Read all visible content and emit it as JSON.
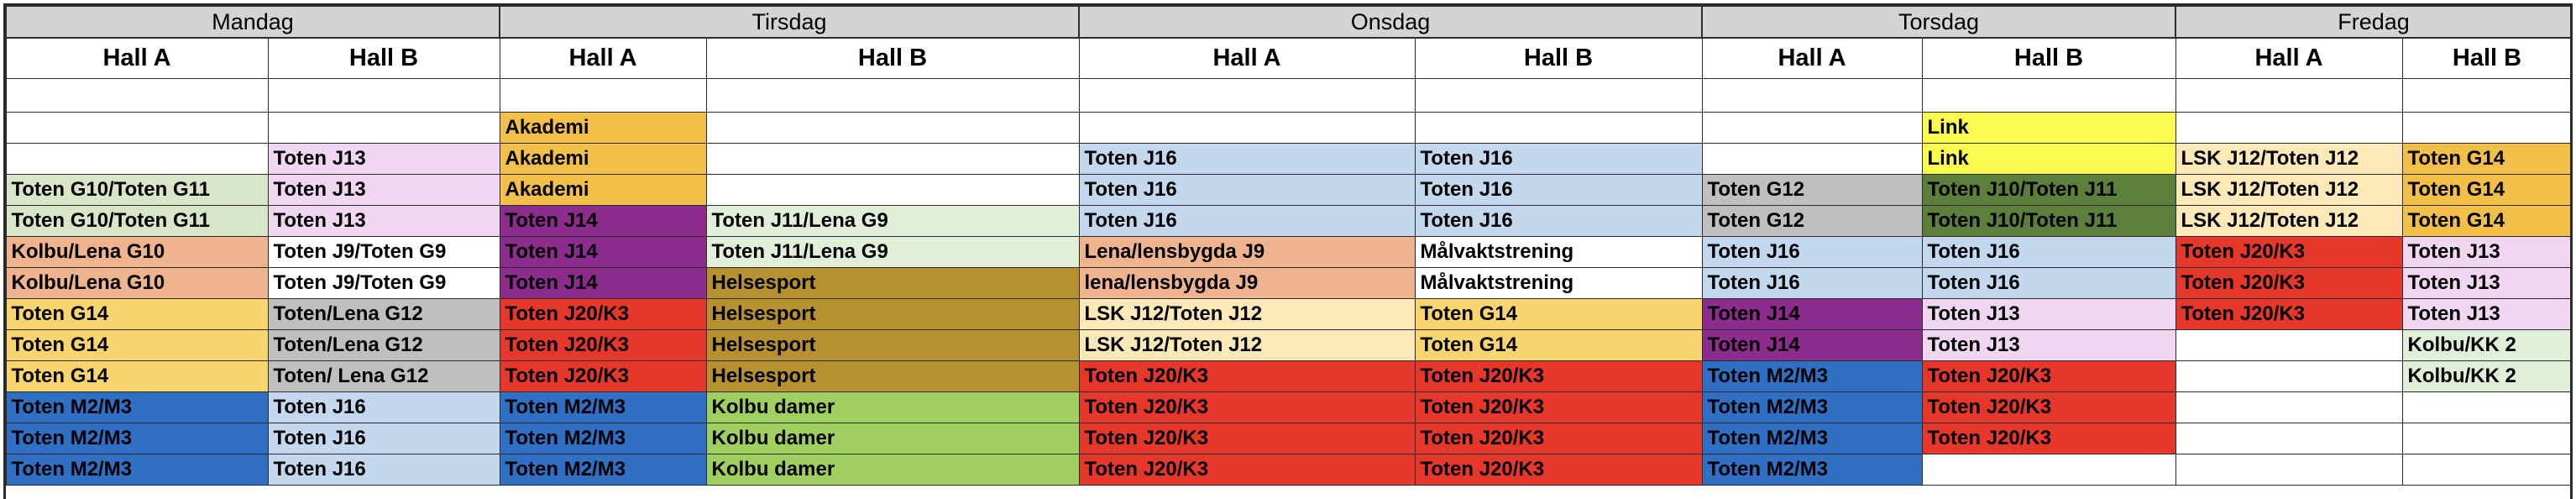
{
  "days": [
    "Mandag",
    "Tirsdag",
    "Onsdag",
    "Torsdag",
    "Fredag"
  ],
  "halls": [
    "Hall A",
    "Hall B",
    "Hall A",
    "Hall B",
    "Hall A",
    "Hall B",
    "Hall A",
    "Hall B",
    "Hall A",
    "Hall B"
  ],
  "colors": {
    "w": "#ffffff",
    "lg": "#d8e6c7",
    "pk": "#f0d6f1",
    "sa": "#efb38e",
    "yo": "#f9d56f",
    "bl": "#2f6fc4",
    "lb": "#c3d7ee",
    "or": "#f2bf48",
    "pu": "#8c2c8c",
    "re": "#e5382a",
    "go": "#b7902f",
    "gr": "#9fcf5e",
    "gy": "#bfbfbf",
    "pg": "#e2efd8",
    "cr": "#fde9b8",
    "ye": "#fafa4f",
    "dg": "#5d7f3c"
  },
  "rows": [
    [
      [
        "",
        "w"
      ],
      [
        "",
        "w"
      ],
      [
        "",
        "w"
      ],
      [
        "",
        "w"
      ],
      [
        "",
        "w"
      ],
      [
        "",
        "w"
      ],
      [
        "",
        "w"
      ],
      [
        "",
        "w"
      ],
      [
        "",
        "w"
      ],
      [
        "",
        "w"
      ]
    ],
    [
      [
        "",
        "w"
      ],
      [
        "",
        "w"
      ],
      [
        "Akademi",
        "or"
      ],
      [
        "",
        "w"
      ],
      [
        "",
        "w"
      ],
      [
        "",
        "w"
      ],
      [
        "",
        "w"
      ],
      [
        "Link",
        "ye"
      ],
      [
        "",
        "w"
      ],
      [
        "",
        "w"
      ]
    ],
    [
      [
        "",
        "w"
      ],
      [
        "Toten J13",
        "pk"
      ],
      [
        "Akademi",
        "or"
      ],
      [
        "",
        "w"
      ],
      [
        "Toten J16",
        "lb"
      ],
      [
        "Toten J16",
        "lb"
      ],
      [
        "",
        "w"
      ],
      [
        "Link",
        "ye"
      ],
      [
        "LSK J12/Toten J12",
        "cr"
      ],
      [
        "Toten G14",
        "or"
      ]
    ],
    [
      [
        "Toten G10/Toten G11",
        "lg"
      ],
      [
        "Toten J13",
        "pk"
      ],
      [
        "Akademi",
        "or"
      ],
      [
        "",
        "w"
      ],
      [
        "Toten J16",
        "lb"
      ],
      [
        "Toten J16",
        "lb"
      ],
      [
        "Toten G12",
        "gy"
      ],
      [
        "Toten J10/Toten J11",
        "dg"
      ],
      [
        "LSK J12/Toten J12",
        "cr"
      ],
      [
        "Toten G14",
        "or"
      ]
    ],
    [
      [
        "Toten G10/Toten G11",
        "lg"
      ],
      [
        "Toten J13",
        "pk"
      ],
      [
        "Toten J14",
        "pu"
      ],
      [
        "Toten J11/Lena G9",
        "pg"
      ],
      [
        "Toten J16",
        "lb"
      ],
      [
        "Toten J16",
        "lb"
      ],
      [
        "Toten G12",
        "gy"
      ],
      [
        "Toten J10/Toten J11",
        "dg"
      ],
      [
        "LSK J12/Toten J12",
        "cr"
      ],
      [
        "Toten G14",
        "or"
      ]
    ],
    [
      [
        "Kolbu/Lena G10",
        "sa"
      ],
      [
        "Toten J9/Toten G9",
        "w"
      ],
      [
        "Toten J14",
        "pu"
      ],
      [
        "Toten J11/Lena G9",
        "pg"
      ],
      [
        "Lena/lensbygda J9",
        "sa"
      ],
      [
        "Målvaktstrening",
        "w"
      ],
      [
        "Toten J16",
        "lb"
      ],
      [
        "Toten J16",
        "lb"
      ],
      [
        "Toten J20/K3",
        "re"
      ],
      [
        "Toten J13",
        "pk"
      ]
    ],
    [
      [
        "Kolbu/Lena G10",
        "sa"
      ],
      [
        "Toten J9/Toten G9",
        "w"
      ],
      [
        "Toten J14",
        "pu"
      ],
      [
        "Helsesport",
        "go"
      ],
      [
        "lena/lensbygda J9",
        "sa"
      ],
      [
        "Målvaktstrening",
        "w"
      ],
      [
        "Toten J16",
        "lb"
      ],
      [
        "Toten J16",
        "lb"
      ],
      [
        "Toten J20/K3",
        "re"
      ],
      [
        "Toten J13",
        "pk"
      ]
    ],
    [
      [
        "Toten G14",
        "yo"
      ],
      [
        "Toten/Lena G12",
        "gy"
      ],
      [
        "Toten J20/K3",
        "re"
      ],
      [
        "Helsesport",
        "go"
      ],
      [
        "LSK J12/Toten J12",
        "cr"
      ],
      [
        "Toten G14",
        "yo"
      ],
      [
        "Toten J14",
        "pu"
      ],
      [
        "Toten J13",
        "pk"
      ],
      [
        "Toten J20/K3",
        "re"
      ],
      [
        "Toten J13",
        "pk"
      ]
    ],
    [
      [
        "Toten G14",
        "yo"
      ],
      [
        "Toten/Lena G12",
        "gy"
      ],
      [
        "Toten J20/K3",
        "re"
      ],
      [
        "Helsesport",
        "go"
      ],
      [
        "LSK J12/Toten J12",
        "cr"
      ],
      [
        "Toten G14",
        "yo"
      ],
      [
        "Toten J14",
        "pu"
      ],
      [
        "Toten J13",
        "pk"
      ],
      [
        "",
        "w"
      ],
      [
        "Kolbu/KK 2",
        "pg"
      ]
    ],
    [
      [
        "Toten G14",
        "yo"
      ],
      [
        "Toten/ Lena G12",
        "gy"
      ],
      [
        "Toten J20/K3",
        "re"
      ],
      [
        "Helsesport",
        "go"
      ],
      [
        "Toten J20/K3",
        "re"
      ],
      [
        "Toten J20/K3",
        "re"
      ],
      [
        "Toten M2/M3",
        "bl"
      ],
      [
        "Toten J20/K3",
        "re"
      ],
      [
        "",
        "w"
      ],
      [
        "Kolbu/KK 2",
        "pg"
      ]
    ],
    [
      [
        "Toten M2/M3",
        "bl"
      ],
      [
        "Toten J16",
        "lb"
      ],
      [
        "Toten M2/M3",
        "bl"
      ],
      [
        "Kolbu damer",
        "gr"
      ],
      [
        "Toten J20/K3",
        "re"
      ],
      [
        "Toten J20/K3",
        "re"
      ],
      [
        "Toten M2/M3",
        "bl"
      ],
      [
        "Toten J20/K3",
        "re"
      ],
      [
        "",
        "w"
      ],
      [
        "",
        "w"
      ]
    ],
    [
      [
        "Toten M2/M3",
        "bl"
      ],
      [
        "Toten J16",
        "lb"
      ],
      [
        "Toten M2/M3",
        "bl"
      ],
      [
        "Kolbu damer",
        "gr"
      ],
      [
        "Toten J20/K3",
        "re"
      ],
      [
        "Toten J20/K3",
        "re"
      ],
      [
        "Toten M2/M3",
        "bl"
      ],
      [
        "Toten J20/K3",
        "re"
      ],
      [
        "",
        "w"
      ],
      [
        "",
        "w"
      ]
    ],
    [
      [
        "Toten M2/M3",
        "bl"
      ],
      [
        "Toten J16",
        "lb"
      ],
      [
        "Toten M2/M3",
        "bl"
      ],
      [
        "Kolbu damer",
        "gr"
      ],
      [
        "Toten J20/K3",
        "re"
      ],
      [
        "Toten J20/K3",
        "re"
      ],
      [
        "Toten M2/M3",
        "bl"
      ],
      [
        "",
        "w"
      ],
      [
        "",
        "w"
      ],
      [
        "",
        "w"
      ]
    ]
  ]
}
